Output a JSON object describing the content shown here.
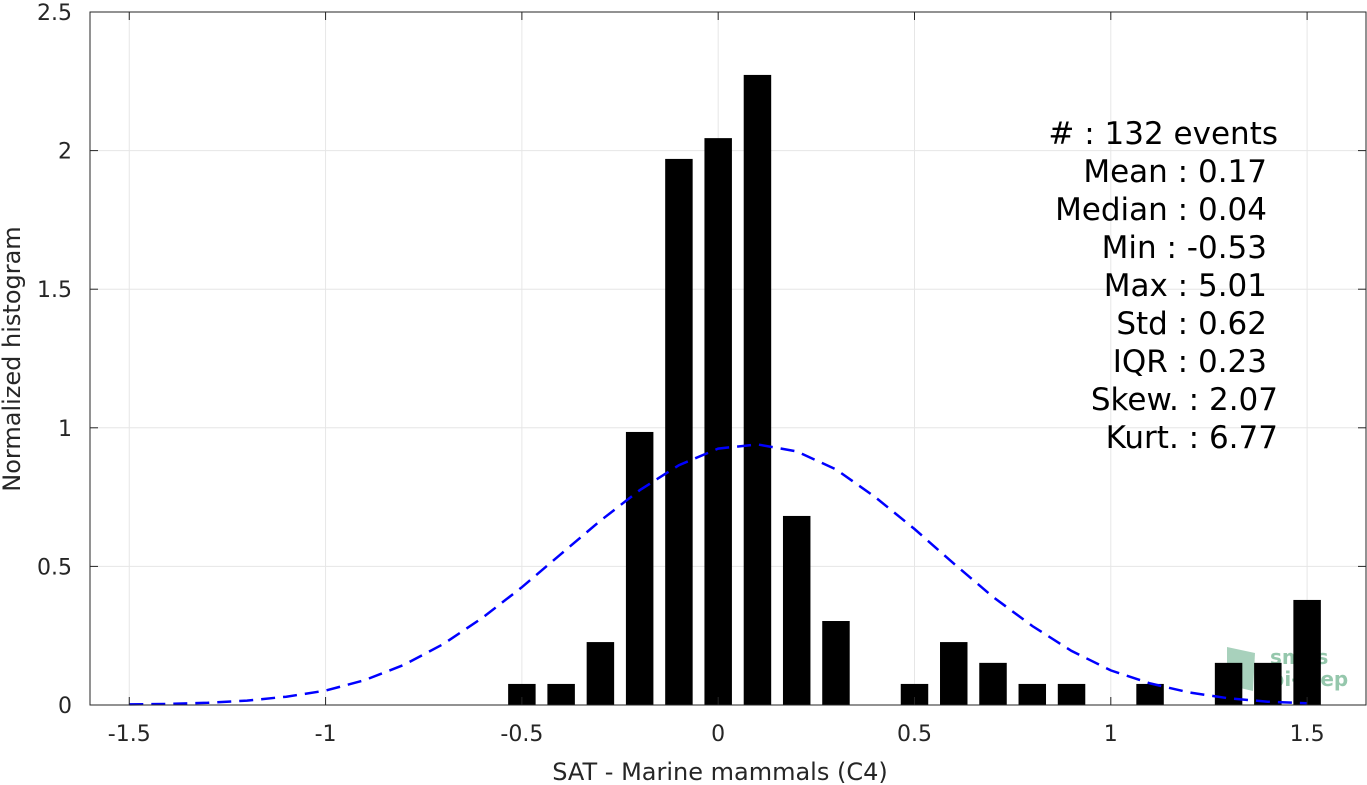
{
  "chart_data": {
    "type": "bar",
    "xlabel": "SAT - Marine mammals (C4)",
    "ylabel": "Normalized histogram",
    "xlim": [
      -1.6,
      1.65
    ],
    "ylim": [
      0,
      2.5
    ],
    "grid": true,
    "x_ticks": [
      -1.5,
      -1,
      -0.5,
      0,
      0.5,
      1,
      1.5
    ],
    "x_tick_labels": [
      "-1.5",
      "-1",
      "-0.5",
      "0",
      "0.5",
      "1",
      "1.5"
    ],
    "y_ticks": [
      0,
      0.5,
      1,
      1.5,
      2,
      2.5
    ],
    "y_tick_labels": [
      "0",
      "0.5",
      "1",
      "1.5",
      "2",
      "2.5"
    ],
    "bar_width": 0.07,
    "bars": {
      "x": [
        -0.5,
        -0.4,
        -0.3,
        -0.2,
        -0.1,
        0.0,
        0.1,
        0.2,
        0.3,
        0.5,
        0.6,
        0.7,
        0.8,
        0.9,
        1.1,
        1.3,
        1.4,
        1.5
      ],
      "values": [
        0.076,
        0.076,
        0.227,
        0.985,
        1.97,
        2.045,
        2.273,
        0.682,
        0.303,
        0.076,
        0.227,
        0.152,
        0.076,
        0.076,
        0.076,
        0.152,
        0.152,
        0.379
      ],
      "color": "#000000"
    },
    "fit_curve": {
      "style": "dashed",
      "color": "#0000ff",
      "x": [
        -1.5,
        -1.4,
        -1.3,
        -1.2,
        -1.1,
        -1.0,
        -0.9,
        -0.8,
        -0.7,
        -0.6,
        -0.5,
        -0.4,
        -0.3,
        -0.2,
        -0.1,
        0.0,
        0.1,
        0.2,
        0.3,
        0.4,
        0.5,
        0.6,
        0.7,
        0.8,
        0.9,
        1.0,
        1.1,
        1.2,
        1.3,
        1.4,
        1.5
      ],
      "y": [
        0.002,
        0.004,
        0.008,
        0.016,
        0.03,
        0.052,
        0.09,
        0.145,
        0.22,
        0.315,
        0.425,
        0.545,
        0.665,
        0.775,
        0.865,
        0.925,
        0.94,
        0.915,
        0.85,
        0.75,
        0.635,
        0.51,
        0.39,
        0.285,
        0.195,
        0.125,
        0.078,
        0.045,
        0.024,
        0.012,
        0.006
      ]
    },
    "stats": [
      "#  : 132 events",
      "Mean : 0.17",
      "Median : 0.04",
      "Min : -0.53",
      "Max : 5.01",
      "Std : 0.62",
      "IQR : 0.23",
      "Skew. : 2.07",
      "Kurt. : 6.77"
    ],
    "watermark": [
      "smos",
      "pi-mep"
    ],
    "colors": {
      "grid": "#e6e6e6",
      "axis": "#262626",
      "watermark": "#3f9a6a"
    }
  }
}
